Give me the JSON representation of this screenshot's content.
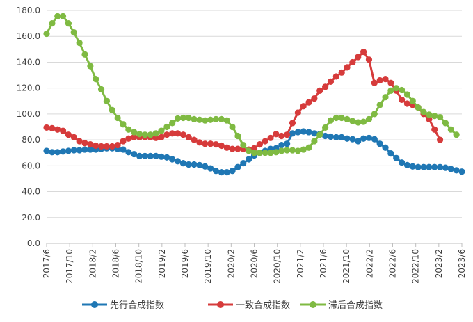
{
  "chart_data": {
    "type": "line",
    "title": "",
    "xlabel": "",
    "ylabel": "",
    "ylim": [
      0,
      180
    ],
    "ytick_step": 20,
    "y_tick_format": "0.0",
    "grid": "horizontal",
    "legend_position": "bottom",
    "start_month": "2017/6",
    "x_tick_labels": [
      "2017/6",
      "2017/10",
      "2018/2",
      "2018/6",
      "2018/10",
      "2019/2",
      "2019/6",
      "2019/10",
      "2020/2",
      "2020/6",
      "2020/10",
      "2021/2",
      "2021/6",
      "2021/10",
      "2022/2",
      "2022/6",
      "2022/10",
      "2023/2",
      "2023/6"
    ],
    "series": [
      {
        "name": "先行合成指数",
        "color": "#1f77b4",
        "values": [
          71.5,
          70.5,
          70.5,
          71,
          71.5,
          72,
          72,
          72.5,
          72.5,
          72.5,
          73,
          73.5,
          73.5,
          73,
          72.5,
          70.5,
          69,
          67.5,
          67.5,
          67.5,
          67.5,
          67,
          66.5,
          65,
          63.5,
          62,
          61,
          61,
          60.5,
          59.5,
          58,
          56,
          55,
          55,
          56,
          59,
          62,
          65,
          68,
          70,
          71.5,
          73,
          73.5,
          76,
          77,
          85,
          86,
          86.5,
          86,
          85,
          84.5,
          83,
          82.5,
          82,
          82,
          81,
          80.5,
          79,
          81,
          81.5,
          80.5,
          77,
          74,
          69.5,
          66,
          62.5,
          60.5,
          59.5,
          59,
          59,
          59,
          59,
          59,
          58.5,
          57.5,
          56.5,
          55.5
        ]
      },
      {
        "name": "一致合成指数",
        "color": "#d63b3b",
        "values": [
          89.5,
          89,
          88,
          87,
          84,
          82,
          79,
          77.5,
          76.5,
          75.5,
          75,
          75,
          75,
          76,
          79,
          81,
          82,
          82,
          82,
          82,
          81.5,
          82,
          84,
          85,
          85,
          84,
          82,
          80,
          78,
          77,
          77,
          76.5,
          75.5,
          74,
          73,
          73,
          73,
          72.5,
          73.5,
          76.5,
          79,
          81.5,
          84.5,
          83,
          84,
          93,
          101,
          106,
          109,
          112,
          118,
          121,
          125,
          129,
          132,
          136,
          140,
          144,
          148,
          142,
          124,
          126,
          127,
          124,
          118,
          111,
          108,
          107,
          105,
          100,
          96,
          88,
          80
        ]
      },
      {
        "name": "滞后合成指数",
        "color": "#7fba42",
        "values": [
          162,
          170,
          175.5,
          175.5,
          170,
          163,
          155,
          146,
          137,
          127,
          119,
          110,
          103,
          97,
          92,
          88,
          86,
          84.5,
          84,
          84,
          85,
          87,
          90,
          93,
          96.5,
          97,
          97,
          96,
          95.5,
          95,
          95.5,
          96,
          96,
          95,
          90,
          83,
          76,
          71.5,
          70,
          70,
          70,
          70,
          70.5,
          71.5,
          72,
          72,
          71.5,
          72.5,
          74,
          79,
          84,
          89.5,
          95,
          97,
          97,
          96,
          94.5,
          93.5,
          94,
          96,
          100,
          107,
          113,
          118,
          120,
          118.5,
          115,
          110,
          105,
          101.5,
          99.5,
          98.5,
          97.5,
          93,
          88,
          84
        ]
      }
    ]
  }
}
